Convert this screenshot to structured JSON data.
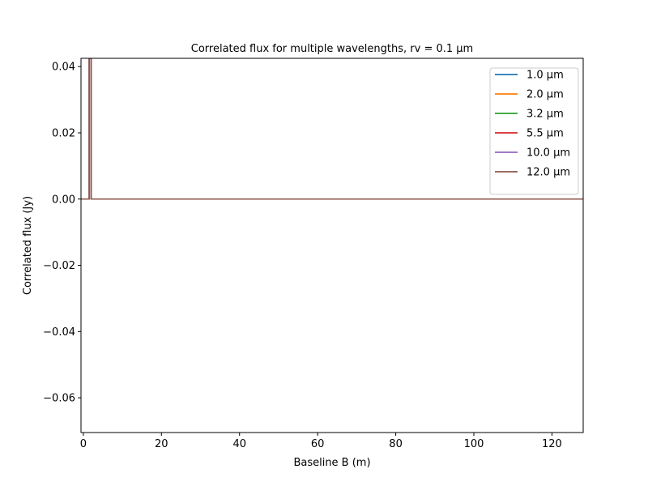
{
  "chart_data": {
    "type": "line",
    "title": "Correlated flux for multiple wavelengths, rv = 0.1 μm",
    "xlabel": "Baseline B (m)",
    "ylabel": "Correlated flux (Jy)",
    "xlim": [
      -0.6,
      128
    ],
    "ylim": [
      -0.0705,
      0.0425
    ],
    "xticks": [
      0,
      20,
      40,
      60,
      80,
      100,
      120
    ],
    "xtick_labels": [
      "0",
      "20",
      "40",
      "60",
      "80",
      "100",
      "120"
    ],
    "yticks": [
      -0.06,
      -0.04,
      -0.02,
      0.0,
      0.02,
      0.04
    ],
    "ytick_labels": [
      "−0.06",
      "−0.04",
      "−0.02",
      "0.00",
      "0.02",
      "0.04"
    ],
    "grid": false,
    "legend_position": "top-right",
    "series": [
      {
        "name": "1.0 μm",
        "color": "#1f77b4",
        "x": [
          -0.6,
          1.5,
          1.5,
          2.0,
          2.0,
          128
        ],
        "y": [
          0,
          0,
          0.0425,
          0.0425,
          0,
          0
        ]
      },
      {
        "name": "2.0 μm",
        "color": "#ff7f0e",
        "x": [
          -0.6,
          1.5,
          1.5,
          2.0,
          2.0,
          128
        ],
        "y": [
          0,
          0,
          0.0425,
          0.0425,
          0,
          0
        ]
      },
      {
        "name": "3.2 μm",
        "color": "#2ca02c",
        "x": [
          -0.6,
          1.5,
          1.5,
          2.0,
          2.0,
          128
        ],
        "y": [
          0,
          0,
          0.0425,
          0.0425,
          0,
          0
        ]
      },
      {
        "name": "5.5 μm",
        "color": "#d62728",
        "x": [
          -0.6,
          1.5,
          1.5,
          2.0,
          2.0,
          128
        ],
        "y": [
          0,
          0,
          0.0425,
          0.0425,
          0,
          0
        ]
      },
      {
        "name": "10.0 μm",
        "color": "#9467bd",
        "x": [
          -0.6,
          1.5,
          1.5,
          2.0,
          2.0,
          128
        ],
        "y": [
          0,
          0,
          0.0425,
          0.0425,
          0,
          0
        ]
      },
      {
        "name": "12.0 μm",
        "color": "#8c564b",
        "x": [
          -0.6,
          1.5,
          1.5,
          2.0,
          2.0,
          128
        ],
        "y": [
          0,
          0,
          0.0425,
          0.0425,
          0,
          0
        ]
      }
    ]
  }
}
